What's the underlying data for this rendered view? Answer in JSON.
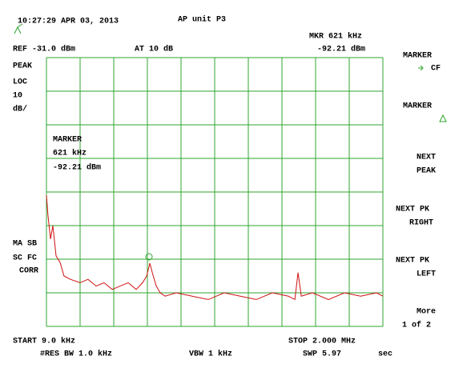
{
  "header": {
    "timestamp": "10:27:29 APR 03, 2013",
    "title": "AP unit P3",
    "marker_readout": "MKR 621 kHz",
    "reference": "REF -31.0 dBm",
    "attenuation": "AT 10 dB",
    "marker_level": "-92.21 dBm"
  },
  "left_labels": [
    "PEAK",
    "LOC",
    "10",
    "dB/"
  ],
  "marker_box": {
    "title": "MARKER",
    "frequency": "621 kHz",
    "level": "-92.21 dBm"
  },
  "left_status": [
    "MA SB",
    "SC FC",
    "CORR"
  ],
  "footer": {
    "start": "START 9.0 kHz",
    "stop": "STOP 2.000 MHz",
    "rbw": "#RES BW 1.0 kHz",
    "vbw": "VBW 1 kHz",
    "sweep": "SWP 5.97",
    "sweep_unit": "sec"
  },
  "softkeys": [
    [
      "MARKER",
      "CF"
    ],
    [
      "MARKER"
    ],
    [
      "NEXT",
      "PEAK"
    ],
    [
      "NEXT PK",
      "RIGHT"
    ],
    [
      "NEXT PK",
      "LEFT"
    ],
    [
      "More",
      "1 of 2"
    ]
  ],
  "trace": {
    "xlim": [
      9,
      2000
    ],
    "ylim": [
      -111,
      -31
    ],
    "khz": [
      9,
      18,
      33,
      47,
      66,
      90,
      113,
      151,
      208,
      255,
      303,
      350,
      398,
      445,
      493,
      540,
      578,
      602,
      621,
      635,
      659,
      682,
      711,
      777,
      872,
      967,
      1061,
      1156,
      1251,
      1346,
      1441,
      1479,
      1498,
      1517,
      1583,
      1678,
      1773,
      1868,
      1962,
      2000
    ],
    "dbm": [
      -72,
      -78,
      -85,
      -81,
      -90,
      -92,
      -96,
      -97,
      -98,
      -97,
      -99,
      -98,
      -100,
      -99,
      -98,
      -100,
      -98,
      -96,
      -92.2,
      -95,
      -99,
      -101,
      -102,
      -101,
      -102,
      -103,
      -101,
      -102,
      -103,
      -101,
      -102,
      -103,
      -95,
      -102,
      -101,
      -103,
      -101,
      -102,
      -101,
      -102
    ]
  }
}
